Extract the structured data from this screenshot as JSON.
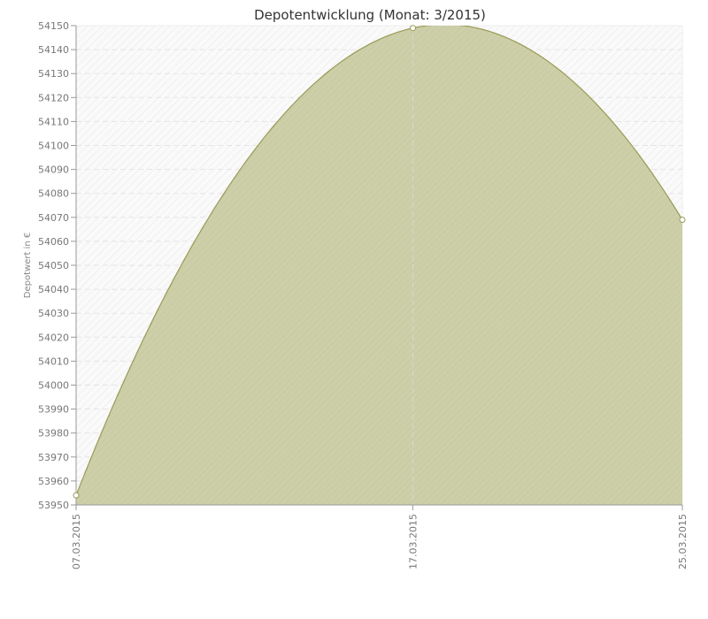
{
  "chart_data": {
    "type": "area",
    "title": "Depotentwicklung (Monat: 3/2015)",
    "ylabel": "Depotwert in €",
    "xlabel": "",
    "ylim": [
      53950,
      54150
    ],
    "y_ticks": [
      53950,
      53960,
      53970,
      53980,
      53990,
      54000,
      54010,
      54020,
      54030,
      54040,
      54050,
      54060,
      54070,
      54080,
      54090,
      54100,
      54110,
      54120,
      54130,
      54140,
      54150
    ],
    "x_ticks": [
      "07.03.2015",
      "17.03.2015",
      "25.03.2015"
    ],
    "grid": true,
    "colors": {
      "fill": "#cdcfa9",
      "line": "#9a9a55",
      "marker_fill": "#ffffff"
    },
    "series": [
      {
        "x": [
          "07.03.2015",
          "17.03.2015",
          "25.03.2015"
        ],
        "y": [
          53954,
          54149,
          54069
        ]
      }
    ]
  }
}
